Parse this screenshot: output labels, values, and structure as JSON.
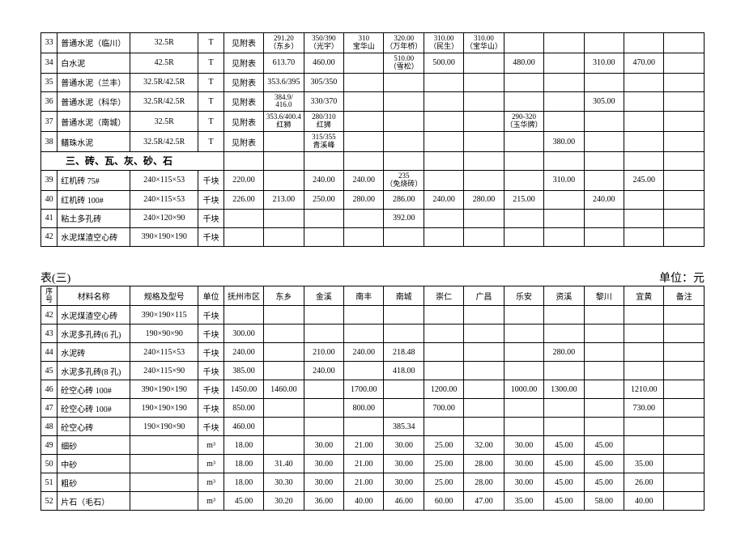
{
  "table1": {
    "rows": [
      {
        "idx": "33",
        "name": "普通水泥（临川）",
        "spec": "32.5R",
        "unit": "T",
        "c1": "见附表",
        "c2": "291.20\n（东乡）",
        "c3": "350/390\n（光宇）",
        "c4": "310\n宝华山",
        "c5": "320.00\n（万年桥）",
        "c6": "310.00\n（民生）",
        "c7": "310.00\n（宝华山）",
        "c8": "",
        "c9": "",
        "c10": "",
        "c11": "",
        "c12": ""
      },
      {
        "idx": "34",
        "name": "白水泥",
        "spec": "42.5R",
        "unit": "T",
        "c1": "见附表",
        "c2": "613.70",
        "c3": "460.00",
        "c4": "",
        "c5": "510.00\n（雪松）",
        "c6": "500.00",
        "c7": "",
        "c8": "480.00",
        "c9": "",
        "c10": "310.00",
        "c11": "470.00",
        "c12": ""
      },
      {
        "idx": "35",
        "name": "普通水泥（兰丰）",
        "spec": "32.5R/42.5R",
        "unit": "T",
        "c1": "见附表",
        "c2": "353.6/395",
        "c3": "305/350",
        "c4": "",
        "c5": "",
        "c6": "",
        "c7": "",
        "c8": "",
        "c9": "",
        "c10": "",
        "c11": "",
        "c12": ""
      },
      {
        "idx": "36",
        "name": "普通水泥（科华）",
        "spec": "32.5R/42.5R",
        "unit": "T",
        "c1": "见附表",
        "c2": "384.9/\n416.0",
        "c3": "330/370",
        "c4": "",
        "c5": "",
        "c6": "",
        "c7": "",
        "c8": "",
        "c9": "",
        "c10": "305.00",
        "c11": "",
        "c12": ""
      },
      {
        "idx": "37",
        "name": "普通水泥（南城）",
        "spec": "32.5R",
        "unit": "T",
        "c1": "见附表",
        "c2": "353.6/400.4\n红狮",
        "c3": "280/310\n红狮",
        "c4": "",
        "c5": "",
        "c6": "",
        "c7": "",
        "c8": "290-320\n（玉华牌）",
        "c9": "",
        "c10": "",
        "c11": "",
        "c12": ""
      },
      {
        "idx": "38",
        "name": "鳝珠水泥",
        "spec": "32.5R/42.5R",
        "unit": "T",
        "c1": "见附表",
        "c2": "",
        "c3": "315/355\n青溪峰",
        "c4": "",
        "c5": "",
        "c6": "",
        "c7": "",
        "c8": "",
        "c9": "380.00",
        "c10": "",
        "c11": "",
        "c12": ""
      }
    ],
    "sectionHeader": "三、砖、瓦、灰、砂、石",
    "rows2": [
      {
        "idx": "39",
        "name": "红机砖 75#",
        "spec": "240×115×53",
        "unit": "千块",
        "c1": "220.00",
        "c2": "",
        "c3": "240.00",
        "c4": "240.00",
        "c5": "235\n（免烧砖）",
        "c6": "",
        "c7": "",
        "c8": "",
        "c9": "310.00",
        "c10": "",
        "c11": "245.00",
        "c12": ""
      },
      {
        "idx": "40",
        "name": "红机砖 100#",
        "spec": "240×115×53",
        "unit": "千块",
        "c1": "226.00",
        "c2": "213.00",
        "c3": "250.00",
        "c4": "280.00",
        "c5": "286.00",
        "c6": "240.00",
        "c7": "280.00",
        "c8": "215.00",
        "c9": "",
        "c10": "240.00",
        "c11": "",
        "c12": ""
      },
      {
        "idx": "41",
        "name": "粘土多孔砖",
        "spec": "240×120×90",
        "unit": "千块",
        "c1": "",
        "c2": "",
        "c3": "",
        "c4": "",
        "c5": "392.00",
        "c6": "",
        "c7": "",
        "c8": "",
        "c9": "",
        "c10": "",
        "c11": "",
        "c12": ""
      },
      {
        "idx": "42",
        "name": "水泥煤渣空心砖",
        "spec": "390×190×190",
        "unit": "千块",
        "c1": "",
        "c2": "",
        "c3": "",
        "c4": "",
        "c5": "",
        "c6": "",
        "c7": "",
        "c8": "",
        "c9": "",
        "c10": "",
        "c11": "",
        "c12": ""
      }
    ]
  },
  "table2": {
    "captionLeft": "表(三)",
    "captionRight": "单位：元",
    "headers": [
      "序号",
      "材料名称",
      "规格及型号",
      "单位",
      "抚州市区",
      "东乡",
      "金溪",
      "南丰",
      "南城",
      "崇仁",
      "广昌",
      "乐安",
      "资溪",
      "黎川",
      "宜黄",
      "备注"
    ],
    "rows": [
      {
        "idx": "42",
        "name": "水泥煤渣空心砖",
        "spec": "390×190×115",
        "unit": "千块",
        "c1": "",
        "c2": "",
        "c3": "",
        "c4": "",
        "c5": "",
        "c6": "",
        "c7": "",
        "c8": "",
        "c9": "",
        "c10": "",
        "c11": "",
        "c12": ""
      },
      {
        "idx": "43",
        "name": "水泥多孔砖(6 孔)",
        "spec": "190×90×90",
        "unit": "千块",
        "c1": "300.00",
        "c2": "",
        "c3": "",
        "c4": "",
        "c5": "",
        "c6": "",
        "c7": "",
        "c8": "",
        "c9": "",
        "c10": "",
        "c11": "",
        "c12": ""
      },
      {
        "idx": "44",
        "name": "水泥砖",
        "spec": "240×115×53",
        "unit": "千块",
        "c1": "240.00",
        "c2": "",
        "c3": "210.00",
        "c4": "240.00",
        "c5": "218.48",
        "c6": "",
        "c7": "",
        "c8": "",
        "c9": "280.00",
        "c10": "",
        "c11": "",
        "c12": ""
      },
      {
        "idx": "45",
        "name": "水泥多孔砖(8 孔)",
        "spec": "240×115×90",
        "unit": "千块",
        "c1": "385.00",
        "c2": "",
        "c3": "240.00",
        "c4": "",
        "c5": "418.00",
        "c6": "",
        "c7": "",
        "c8": "",
        "c9": "",
        "c10": "",
        "c11": "",
        "c12": ""
      },
      {
        "idx": "46",
        "name": "砼空心砖   100#",
        "spec": "390×190×190",
        "unit": "千块",
        "c1": "1450.00",
        "c2": "1460.00",
        "c3": "",
        "c4": "1700.00",
        "c5": "",
        "c6": "1200.00",
        "c7": "",
        "c8": "1000.00",
        "c9": "1300.00",
        "c10": "",
        "c11": "1210.00",
        "c12": ""
      },
      {
        "idx": "47",
        "name": "砼空心砖   100#",
        "spec": "190×190×190",
        "unit": "千块",
        "c1": "850.00",
        "c2": "",
        "c3": "",
        "c4": "800.00",
        "c5": "",
        "c6": "700.00",
        "c7": "",
        "c8": "",
        "c9": "",
        "c10": "",
        "c11": "730.00",
        "c12": ""
      },
      {
        "idx": "48",
        "name": "砼空心砖",
        "spec": "190×190×90",
        "unit": "千块",
        "c1": "460.00",
        "c2": "",
        "c3": "",
        "c4": "",
        "c5": "385.34",
        "c6": "",
        "c7": "",
        "c8": "",
        "c9": "",
        "c10": "",
        "c11": "",
        "c12": ""
      },
      {
        "idx": "49",
        "name": "细砂",
        "spec": "",
        "unit": "m³",
        "c1": "18.00",
        "c2": "",
        "c3": "30.00",
        "c4": "21.00",
        "c5": "30.00",
        "c6": "25.00",
        "c7": "32.00",
        "c8": "30.00",
        "c9": "45.00",
        "c10": "45.00",
        "c11": "",
        "c12": ""
      },
      {
        "idx": "50",
        "name": "中砂",
        "spec": "",
        "unit": "m³",
        "c1": "18.00",
        "c2": "31.40",
        "c3": "30.00",
        "c4": "21.00",
        "c5": "30.00",
        "c6": "25.00",
        "c7": "28.00",
        "c8": "30.00",
        "c9": "45.00",
        "c10": "45.00",
        "c11": "35.00",
        "c12": ""
      },
      {
        "idx": "51",
        "name": "粗砂",
        "spec": "",
        "unit": "m³",
        "c1": "18.00",
        "c2": "30.30",
        "c3": "30.00",
        "c4": "21.00",
        "c5": "30.00",
        "c6": "25.00",
        "c7": "28.00",
        "c8": "30.00",
        "c9": "45.00",
        "c10": "45.00",
        "c11": "26.00",
        "c12": ""
      },
      {
        "idx": "52",
        "name": "片石（毛石）",
        "spec": "",
        "unit": "m³",
        "c1": "45.00",
        "c2": "30.20",
        "c3": "36.00",
        "c4": "40.00",
        "c5": "46.00",
        "c6": "60.00",
        "c7": "47.00",
        "c8": "35.00",
        "c9": "45.00",
        "c10": "58.00",
        "c11": "40.00",
        "c12": ""
      }
    ]
  }
}
